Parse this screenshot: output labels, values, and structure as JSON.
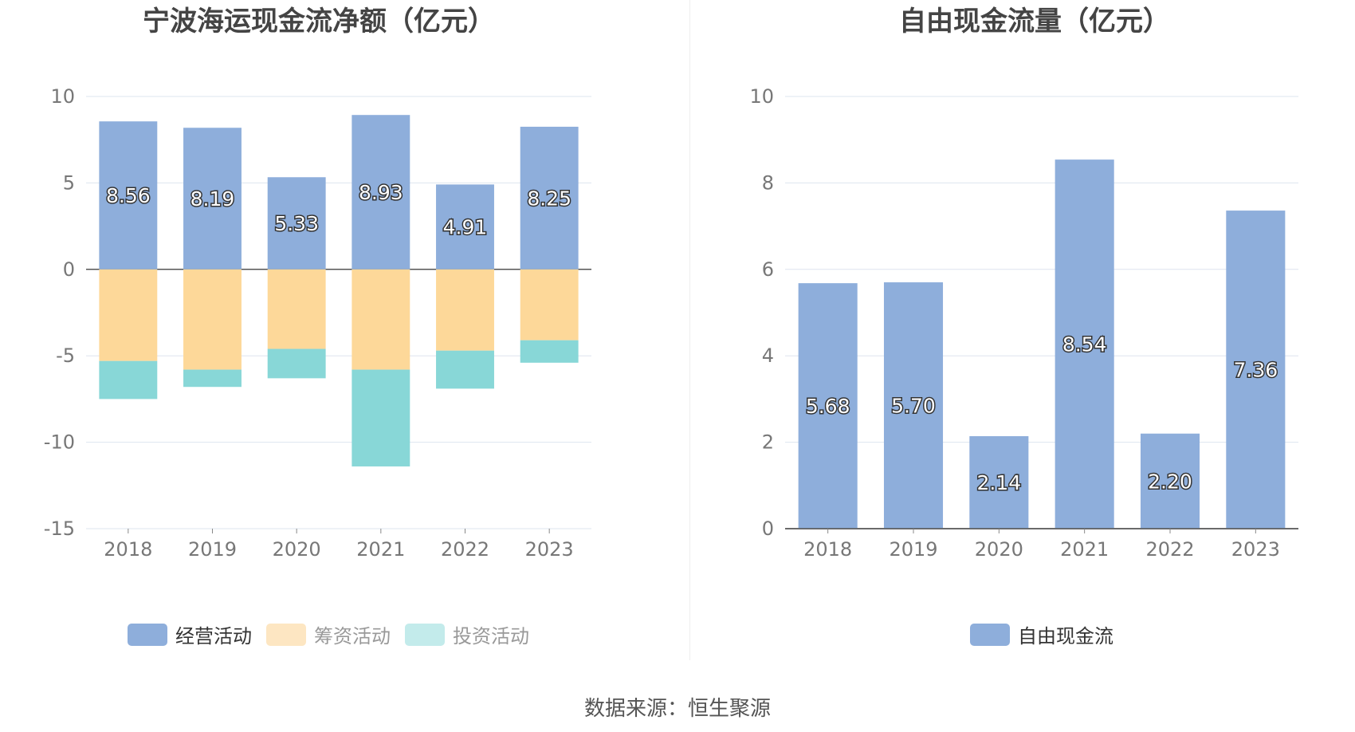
{
  "left_chart": {
    "title": "宁波海运现金流净额（亿元）",
    "legend": [
      {
        "label": "经营活动",
        "color": "#8eaedb",
        "active": true
      },
      {
        "label": "筹资活动",
        "color": "#fdd899",
        "active": false
      },
      {
        "label": "投资活动",
        "color": "#88d7d7",
        "active": false
      }
    ]
  },
  "right_chart": {
    "title": "自由现金流量（亿元）",
    "legend": [
      {
        "label": "自由现金流",
        "color": "#8eaedb",
        "active": true
      }
    ]
  },
  "source": "数据来源：恒生聚源",
  "chart_data": [
    {
      "type": "bar",
      "stacked": true,
      "title": "宁波海运现金流净额（亿元）",
      "categories": [
        "2018",
        "2019",
        "2020",
        "2021",
        "2022",
        "2023"
      ],
      "ylim": [
        -15,
        10
      ],
      "yticks": [
        10,
        5,
        0,
        -5,
        -10,
        -15
      ],
      "grid": true,
      "legend_position": "bottom",
      "series": [
        {
          "name": "经营活动",
          "color": "#8eaedb",
          "values": [
            8.56,
            8.19,
            5.33,
            8.93,
            4.91,
            8.25
          ],
          "labels": [
            "8.56",
            "8.19",
            "5.33",
            "8.93",
            "4.91",
            "8.25"
          ]
        },
        {
          "name": "筹资活动",
          "color": "#fdd899",
          "values": [
            -5.3,
            -5.8,
            -4.6,
            -5.8,
            -4.7,
            -4.1
          ]
        },
        {
          "name": "投资活动",
          "color": "#88d7d7",
          "values": [
            -2.2,
            -1.0,
            -1.7,
            -5.6,
            -2.2,
            -1.3
          ]
        }
      ]
    },
    {
      "type": "bar",
      "title": "自由现金流量（亿元）",
      "categories": [
        "2018",
        "2019",
        "2020",
        "2021",
        "2022",
        "2023"
      ],
      "ylim": [
        0,
        10
      ],
      "yticks": [
        10,
        8,
        6,
        4,
        2,
        0
      ],
      "grid": true,
      "legend_position": "bottom",
      "series": [
        {
          "name": "自由现金流",
          "color": "#8eaedb",
          "values": [
            5.68,
            5.7,
            2.14,
            8.54,
            2.2,
            7.36
          ],
          "labels": [
            "5.68",
            "5.70",
            "2.14",
            "8.54",
            "2.20",
            "7.36"
          ]
        }
      ]
    }
  ]
}
